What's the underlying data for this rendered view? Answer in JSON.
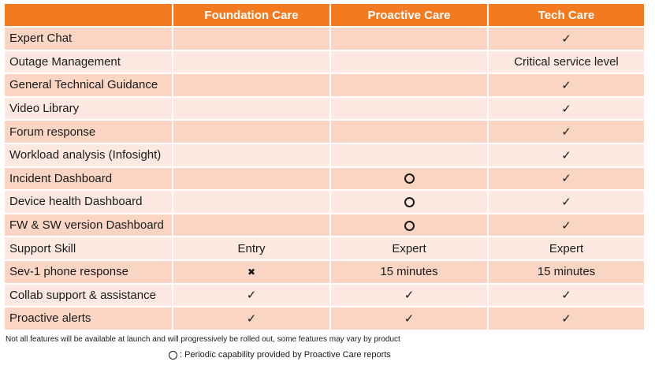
{
  "columns": [
    "",
    "Foundation Care",
    "Proactive Care",
    "Tech Care"
  ],
  "rows": [
    {
      "feature": "Expert Chat",
      "cells": [
        {
          "type": "empty"
        },
        {
          "type": "empty"
        },
        {
          "type": "check",
          "icon": "check-icon",
          "text": "✓"
        }
      ]
    },
    {
      "feature": "Outage Management",
      "cells": [
        {
          "type": "empty"
        },
        {
          "type": "empty"
        },
        {
          "type": "text",
          "text": "Critical service level"
        }
      ]
    },
    {
      "feature": "General Technical Guidance",
      "cells": [
        {
          "type": "empty"
        },
        {
          "type": "empty"
        },
        {
          "type": "check",
          "icon": "check-icon",
          "text": "✓"
        }
      ]
    },
    {
      "feature": "Video Library",
      "cells": [
        {
          "type": "empty"
        },
        {
          "type": "empty"
        },
        {
          "type": "check",
          "icon": "check-icon",
          "text": "✓"
        }
      ]
    },
    {
      "feature": "Forum response",
      "cells": [
        {
          "type": "empty"
        },
        {
          "type": "empty"
        },
        {
          "type": "check",
          "icon": "check-icon",
          "text": "✓"
        }
      ]
    },
    {
      "feature": "Workload analysis (Infosight)",
      "cells": [
        {
          "type": "empty"
        },
        {
          "type": "empty"
        },
        {
          "type": "check",
          "icon": "check-icon",
          "text": "✓"
        }
      ]
    },
    {
      "feature": "Incident Dashboard",
      "cells": [
        {
          "type": "empty"
        },
        {
          "type": "circle",
          "icon": "circle-icon"
        },
        {
          "type": "check",
          "icon": "check-icon",
          "text": "✓"
        }
      ]
    },
    {
      "feature": "Device health Dashboard",
      "cells": [
        {
          "type": "empty"
        },
        {
          "type": "circle",
          "icon": "circle-icon"
        },
        {
          "type": "check",
          "icon": "check-icon",
          "text": "✓"
        }
      ]
    },
    {
      "feature": "FW & SW version Dashboard",
      "cells": [
        {
          "type": "empty"
        },
        {
          "type": "circle",
          "icon": "circle-icon"
        },
        {
          "type": "check",
          "icon": "check-icon",
          "text": "✓"
        }
      ]
    },
    {
      "feature": "Support Skill",
      "cells": [
        {
          "type": "text",
          "text": "Entry"
        },
        {
          "type": "text",
          "text": "Expert"
        },
        {
          "type": "text",
          "text": "Expert"
        }
      ]
    },
    {
      "feature": "Sev-1 phone response",
      "cells": [
        {
          "type": "cross",
          "icon": "cross-icon",
          "text": "✖"
        },
        {
          "type": "text",
          "text": "15 minutes"
        },
        {
          "type": "text",
          "text": "15 minutes"
        }
      ]
    },
    {
      "feature": "Collab support & assistance",
      "cells": [
        {
          "type": "check",
          "icon": "check-icon",
          "text": "✓"
        },
        {
          "type": "check",
          "icon": "check-icon",
          "text": "✓"
        },
        {
          "type": "check",
          "icon": "check-icon",
          "text": "✓"
        }
      ]
    },
    {
      "feature": "Proactive alerts",
      "cells": [
        {
          "type": "check",
          "icon": "check-icon",
          "text": "✓"
        },
        {
          "type": "check",
          "icon": "check-icon",
          "text": "✓"
        },
        {
          "type": "check",
          "icon": "check-icon",
          "text": "✓"
        }
      ]
    }
  ],
  "notes": {
    "availability": "Not all features will be available at launch and will progressively be rolled out, some features may vary by product",
    "legend": ": Periodic capability provided by Proactive Care reports"
  },
  "colors": {
    "header": "#f47a20",
    "row_odd": "#fbd5c4",
    "row_even": "#fde9e1"
  }
}
